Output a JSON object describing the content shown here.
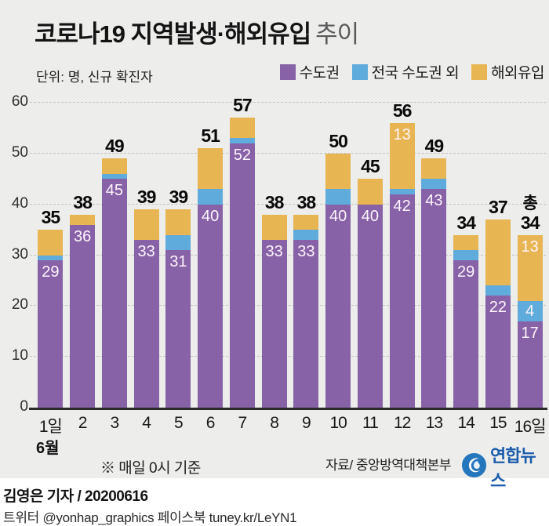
{
  "header": {
    "title_main": "코로나19 지역발생·해외유입",
    "title_suffix": "추이",
    "unit": "단위: 명, 신규 확진자"
  },
  "chart_data": {
    "type": "bar",
    "stacked": true,
    "title": "코로나19 지역발생·해외유입 추이",
    "xlabel": "6월 (일)",
    "ylabel": "명, 신규 확진자",
    "ylim": [
      0,
      60
    ],
    "yticks": [
      0,
      10,
      20,
      30,
      40,
      50,
      60
    ],
    "grid": "dashed-horizontal",
    "legend_position": "top-right",
    "categories": [
      "1일",
      "2",
      "3",
      "4",
      "5",
      "6",
      "7",
      "8",
      "9",
      "10",
      "11",
      "12",
      "13",
      "14",
      "15",
      "16일"
    ],
    "series": [
      {
        "key": "capital-region",
        "name": "수도권",
        "color": "#8862a7",
        "values": [
          29,
          36,
          45,
          33,
          31,
          40,
          52,
          33,
          33,
          40,
          40,
          42,
          43,
          29,
          22,
          17
        ],
        "labels": [
          "29",
          "36",
          "45",
          "33",
          "31",
          "40",
          "52",
          "33",
          "33",
          "40",
          "40",
          "42",
          "43",
          "29",
          "22",
          "17"
        ]
      },
      {
        "key": "non-capital-region",
        "name": "전국 수도권 외",
        "color": "#5fabdc",
        "values": [
          1,
          0,
          1,
          0,
          3,
          3,
          1,
          0,
          2,
          3,
          0,
          1,
          2,
          2,
          2,
          4
        ],
        "labels": [
          "",
          "",
          "",
          "",
          "",
          "",
          "",
          "",
          "",
          "",
          "",
          "",
          "",
          "",
          "",
          "4"
        ]
      },
      {
        "key": "overseas-inflow",
        "name": "해외유입",
        "color": "#e8b553",
        "values": [
          5,
          2,
          3,
          6,
          5,
          8,
          4,
          5,
          3,
          7,
          5,
          13,
          4,
          3,
          13,
          13
        ],
        "labels": [
          "",
          "",
          "",
          "",
          "",
          "",
          "",
          "",
          "",
          "",
          "",
          "13",
          "",
          "",
          "",
          "13"
        ]
      }
    ],
    "totals": [
      35,
      38,
      49,
      39,
      39,
      51,
      57,
      38,
      38,
      50,
      45,
      56,
      49,
      34,
      37,
      34
    ],
    "total_prefixes": [
      "",
      "",
      "",
      "",
      "",
      "",
      "",
      "",
      "",
      "",
      "",
      "",
      "",
      "",
      "",
      "총"
    ]
  },
  "footnotes": {
    "month": "6월",
    "basis": "※ 매일 0시 기준",
    "source": "자료/ 중앙방역대책본부"
  },
  "brand": {
    "name": "연합뉴스"
  },
  "footer": {
    "byline": "김영은 기자 / 20200616",
    "social": "트위터 @yonhap_graphics  페이스북 tuney.kr/LeYN1"
  }
}
